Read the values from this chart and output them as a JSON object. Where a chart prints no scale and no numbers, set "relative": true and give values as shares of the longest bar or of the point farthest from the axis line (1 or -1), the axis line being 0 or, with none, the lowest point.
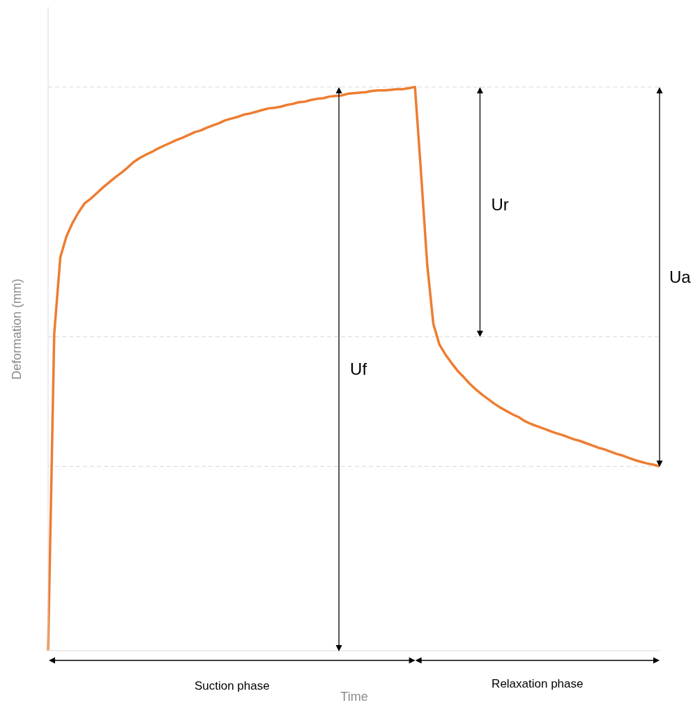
{
  "chart_data": {
    "type": "line",
    "relative": true,
    "xlabel": "Time",
    "ylabel": "Deformation (mm)",
    "categories": [
      null,
      null,
      null,
      null,
      null,
      null,
      null,
      null,
      null,
      null,
      null,
      null,
      null,
      null,
      null,
      null,
      null,
      null,
      null,
      null,
      null,
      null,
      null,
      null,
      null,
      null,
      null,
      null,
      null,
      null,
      null,
      null,
      null,
      null,
      null,
      null,
      null,
      null,
      null,
      null,
      null,
      null,
      null,
      null,
      null,
      null,
      null,
      null,
      null,
      null,
      null,
      null,
      null,
      null,
      null,
      null,
      null,
      null,
      null,
      null,
      null,
      null,
      null,
      null,
      null,
      null,
      null,
      null,
      null,
      null,
      null,
      null,
      null,
      null,
      null,
      null,
      null,
      null,
      null,
      null,
      null,
      null,
      null,
      null,
      null,
      null,
      null,
      null,
      null,
      null,
      null,
      null,
      null,
      null,
      null,
      null,
      null,
      null,
      null,
      null,
      null
    ],
    "series": [
      {
        "color": "#ed7d31",
        "values": [
          0,
          0.562,
          0.698,
          0.735,
          0.759,
          0.778,
          0.794,
          0.802,
          0.812,
          0.822,
          0.831,
          0.84,
          0.848,
          0.857,
          0.867,
          0.874,
          0.88,
          0.885,
          0.891,
          0.896,
          0.901,
          0.906,
          0.91,
          0.915,
          0.92,
          0.923,
          0.928,
          0.932,
          0.936,
          0.941,
          0.944,
          0.947,
          0.951,
          0.953,
          0.956,
          0.959,
          0.962,
          0.963,
          0.965,
          0.968,
          0.97,
          0.973,
          0.974,
          0.977,
          0.979,
          0.98,
          0.983,
          0.984,
          0.985,
          0.988,
          0.989,
          0.99,
          0.991,
          0.993,
          0.994,
          0.994,
          0.995,
          0.996,
          0.996,
          0.998,
          1,
          0.846,
          0.685,
          0.58,
          0.543,
          0.525,
          0.51,
          0.496,
          0.485,
          0.473,
          0.463,
          0.454,
          0.446,
          0.438,
          0.431,
          0.425,
          0.419,
          0.414,
          0.407,
          0.402,
          0.398,
          0.394,
          0.39,
          0.386,
          0.383,
          0.379,
          0.375,
          0.372,
          0.368,
          0.364,
          0.36,
          0.357,
          0.353,
          0.349,
          0.346,
          0.342,
          0.338,
          0.335,
          0.332,
          0.33,
          0.327
        ]
      }
    ],
    "ref_lines": [
      {
        "axis": "y",
        "value": 1,
        "color": "#d9d9d9",
        "line_style": "dashed"
      },
      {
        "axis": "y",
        "value": 0.557,
        "color": "#d9d9d9",
        "line_style": "dashed"
      },
      {
        "axis": "y",
        "value": 0.327,
        "color": "#d9d9d9",
        "line_style": "dashed"
      }
    ],
    "annotations": [
      "Uf",
      "Ur",
      "Ua",
      "Suction phase",
      "Relaxation phase"
    ],
    "marker": "none",
    "line_style": "solid"
  }
}
